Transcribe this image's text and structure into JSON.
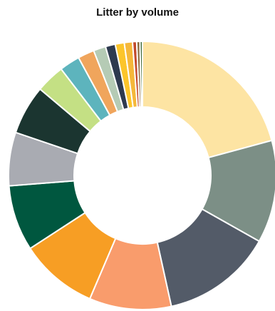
{
  "chart_data": {
    "type": "pie",
    "title": "Litter by volume",
    "donut": true,
    "legend": "none",
    "values": [
      21.0,
      12.5,
      13.5,
      10.0,
      9.5,
      8.0,
      6.5,
      6.0,
      3.5,
      2.5,
      2.0,
      1.5,
      1.2,
      1.1,
      1.0,
      0.5,
      0.4,
      0.3
    ],
    "colors": [
      "#fde4a3",
      "#7c8f86",
      "#535b68",
      "#f99c6c",
      "#f79e24",
      "#00573f",
      "#a9abb2",
      "#1b3530",
      "#c4e084",
      "#5db4bd",
      "#f0a55c",
      "#b5cbb5",
      "#2e3a4f",
      "#fcc52b",
      "#f5b83a",
      "#c24a2c",
      "#8a6a3b",
      "#3f6b3a"
    ]
  }
}
